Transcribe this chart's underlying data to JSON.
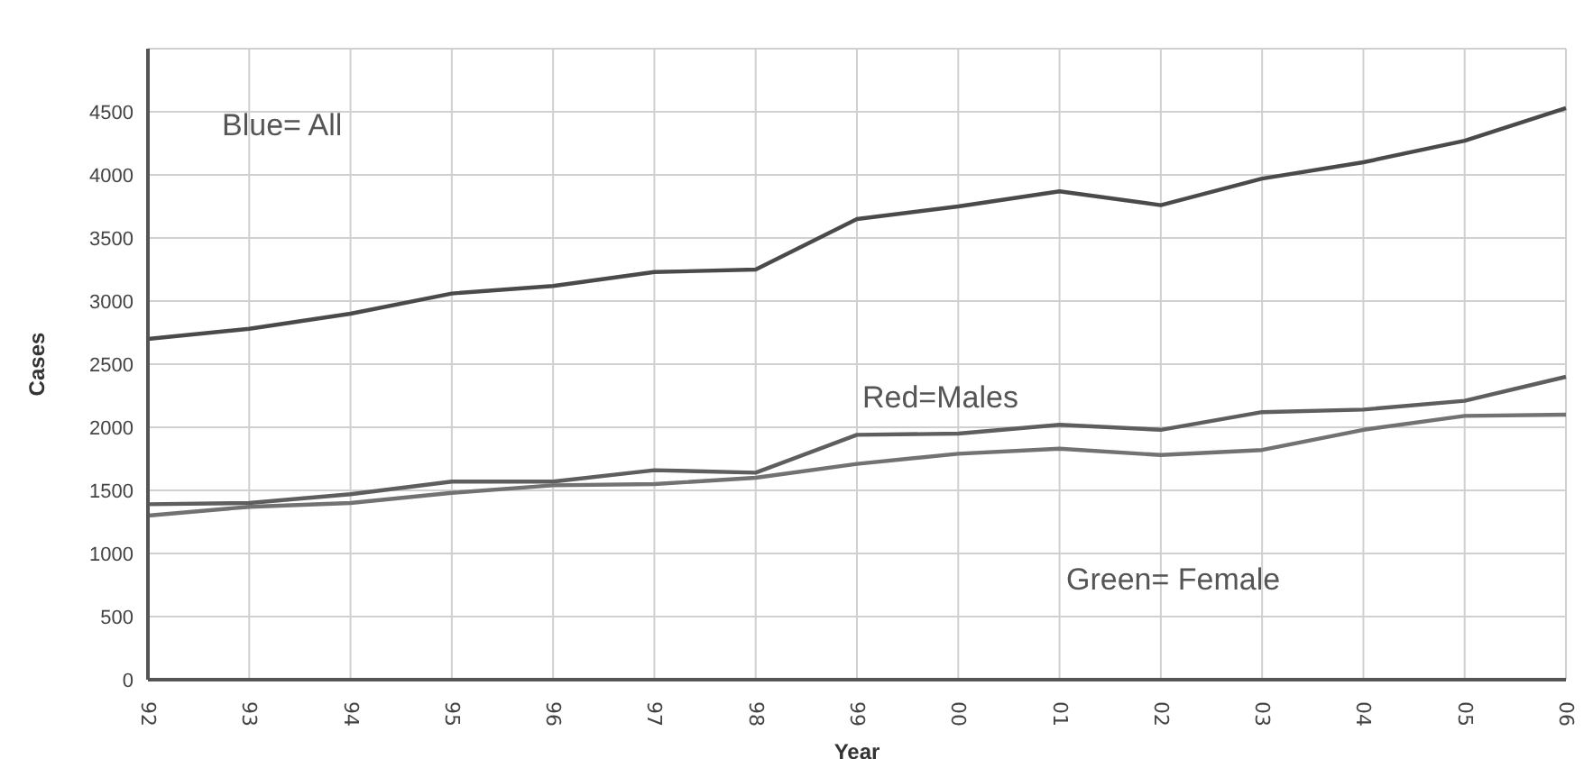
{
  "chart_data": {
    "type": "line",
    "xlabel": "Year",
    "ylabel": "Cases",
    "categories": [
      "92",
      "93",
      "94",
      "95",
      "96",
      "97",
      "98",
      "99",
      "00",
      "01",
      "02",
      "03",
      "04",
      "05",
      "06"
    ],
    "series": [
      {
        "color": "#4a4a4a",
        "values": [
          2700,
          2780,
          2900,
          3060,
          3120,
          3230,
          3250,
          3650,
          3750,
          3870,
          3760,
          3970,
          4100,
          4270,
          4530
        ]
      },
      {
        "color": "#5e5e5e",
        "values": [
          1390,
          1400,
          1470,
          1570,
          1570,
          1660,
          1640,
          1940,
          1950,
          2020,
          1980,
          2120,
          2140,
          2210,
          2400
        ]
      },
      {
        "color": "#727272",
        "values": [
          1300,
          1370,
          1400,
          1480,
          1540,
          1550,
          1600,
          1710,
          1790,
          1830,
          1780,
          1820,
          1980,
          2090,
          2100
        ]
      }
    ],
    "annotations": [
      "Blue= All",
      "Red=Males",
      "Green= Female"
    ],
    "ylim": [
      0,
      5000
    ],
    "yticks": [
      0,
      500,
      1000,
      1500,
      2000,
      2500,
      3000,
      3500,
      4000,
      4500
    ],
    "grid": true,
    "legend": false,
    "marker": "none",
    "line_style": "solid"
  }
}
